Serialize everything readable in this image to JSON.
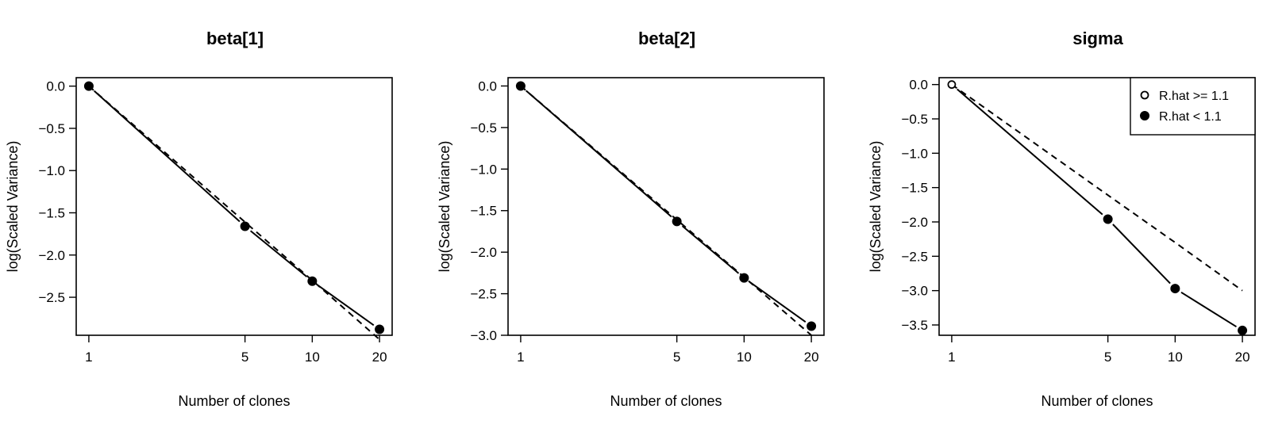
{
  "chart_data": [
    {
      "type": "line",
      "title": "beta[1]",
      "xlabel": "Number of clones",
      "ylabel": "log(Scaled Variance)",
      "x_scale": "log",
      "x": [
        1,
        5,
        10,
        20
      ],
      "x_ticks": [
        "1",
        "5",
        "10",
        "20"
      ],
      "y_ticks": [
        "0.0",
        "−0.5",
        "−1.0",
        "−1.5",
        "−2.0",
        "−2.5"
      ],
      "ylim": [
        -2.95,
        0.1
      ],
      "series": [
        {
          "values": [
            0.0,
            -1.66,
            -2.31,
            -2.88
          ],
          "style": "solid",
          "markers": [
            false,
            false,
            false,
            false
          ]
        },
        {
          "values": [
            0.0,
            -1.61,
            -2.3,
            -3.0
          ],
          "style": "dashed"
        }
      ],
      "legend": null
    },
    {
      "type": "line",
      "title": "beta[2]",
      "xlabel": "Number of clones",
      "ylabel": "log(Scaled Variance)",
      "x_scale": "log",
      "x": [
        1,
        5,
        10,
        20
      ],
      "x_ticks": [
        "1",
        "5",
        "10",
        "20"
      ],
      "y_ticks": [
        "0.0",
        "−0.5",
        "−1.0",
        "−1.5",
        "−2.0",
        "−2.5",
        "−3.0"
      ],
      "ylim": [
        -3.0,
        0.1
      ],
      "series": [
        {
          "values": [
            0.0,
            -1.63,
            -2.31,
            -2.89
          ],
          "style": "solid",
          "markers": [
            false,
            false,
            false,
            false
          ]
        },
        {
          "values": [
            0.0,
            -1.61,
            -2.3,
            -3.0
          ],
          "style": "dashed"
        }
      ],
      "legend": null
    },
    {
      "type": "line",
      "title": "sigma",
      "xlabel": "Number of clones",
      "ylabel": "log(Scaled Variance)",
      "x_scale": "log",
      "x": [
        1,
        5,
        10,
        20
      ],
      "x_ticks": [
        "1",
        "5",
        "10",
        "20"
      ],
      "y_ticks": [
        "0.0",
        "−0.5",
        "−1.0",
        "−1.5",
        "−2.0",
        "−2.5",
        "−3.0",
        "−3.5"
      ],
      "ylim": [
        -3.65,
        0.1
      ],
      "series": [
        {
          "values": [
            0.0,
            -1.96,
            -2.97,
            -3.58
          ],
          "style": "solid",
          "markers": [
            true,
            false,
            false,
            false
          ]
        },
        {
          "values": [
            0.0,
            -1.61,
            -2.3,
            -3.0
          ],
          "style": "dashed"
        }
      ],
      "legend": {
        "position": "top-right",
        "entries": [
          {
            "label": "R.hat >= 1.1",
            "marker": "open-circle"
          },
          {
            "label": "R.hat < 1.1",
            "marker": "filled-circle"
          }
        ]
      }
    }
  ]
}
